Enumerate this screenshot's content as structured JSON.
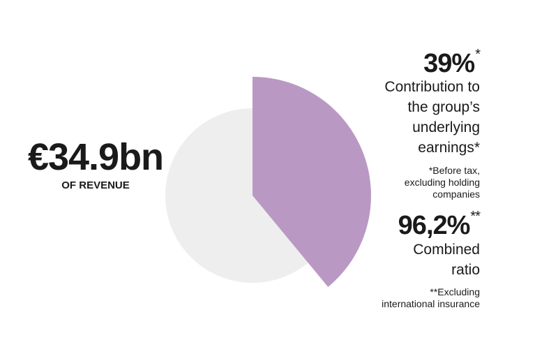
{
  "revenue": {
    "value": "€34.9bn",
    "label": "OF REVENUE"
  },
  "stat1": {
    "value": "39%",
    "mark": "*",
    "lines": [
      "Contribution to",
      "the group’s",
      "underlying",
      "earnings*"
    ],
    "note": [
      "*Before tax,",
      "excluding holding",
      "companies"
    ]
  },
  "stat2": {
    "value": "96,2%",
    "mark": "**",
    "lines": [
      "Combined",
      "ratio"
    ],
    "note": [
      "**Excluding",
      "international insurance"
    ]
  },
  "chart_data": {
    "type": "pie",
    "values": [
      39,
      61
    ],
    "colors": [
      "#b999c3",
      "#eeeeee"
    ],
    "exploded": [
      true,
      false
    ]
  }
}
